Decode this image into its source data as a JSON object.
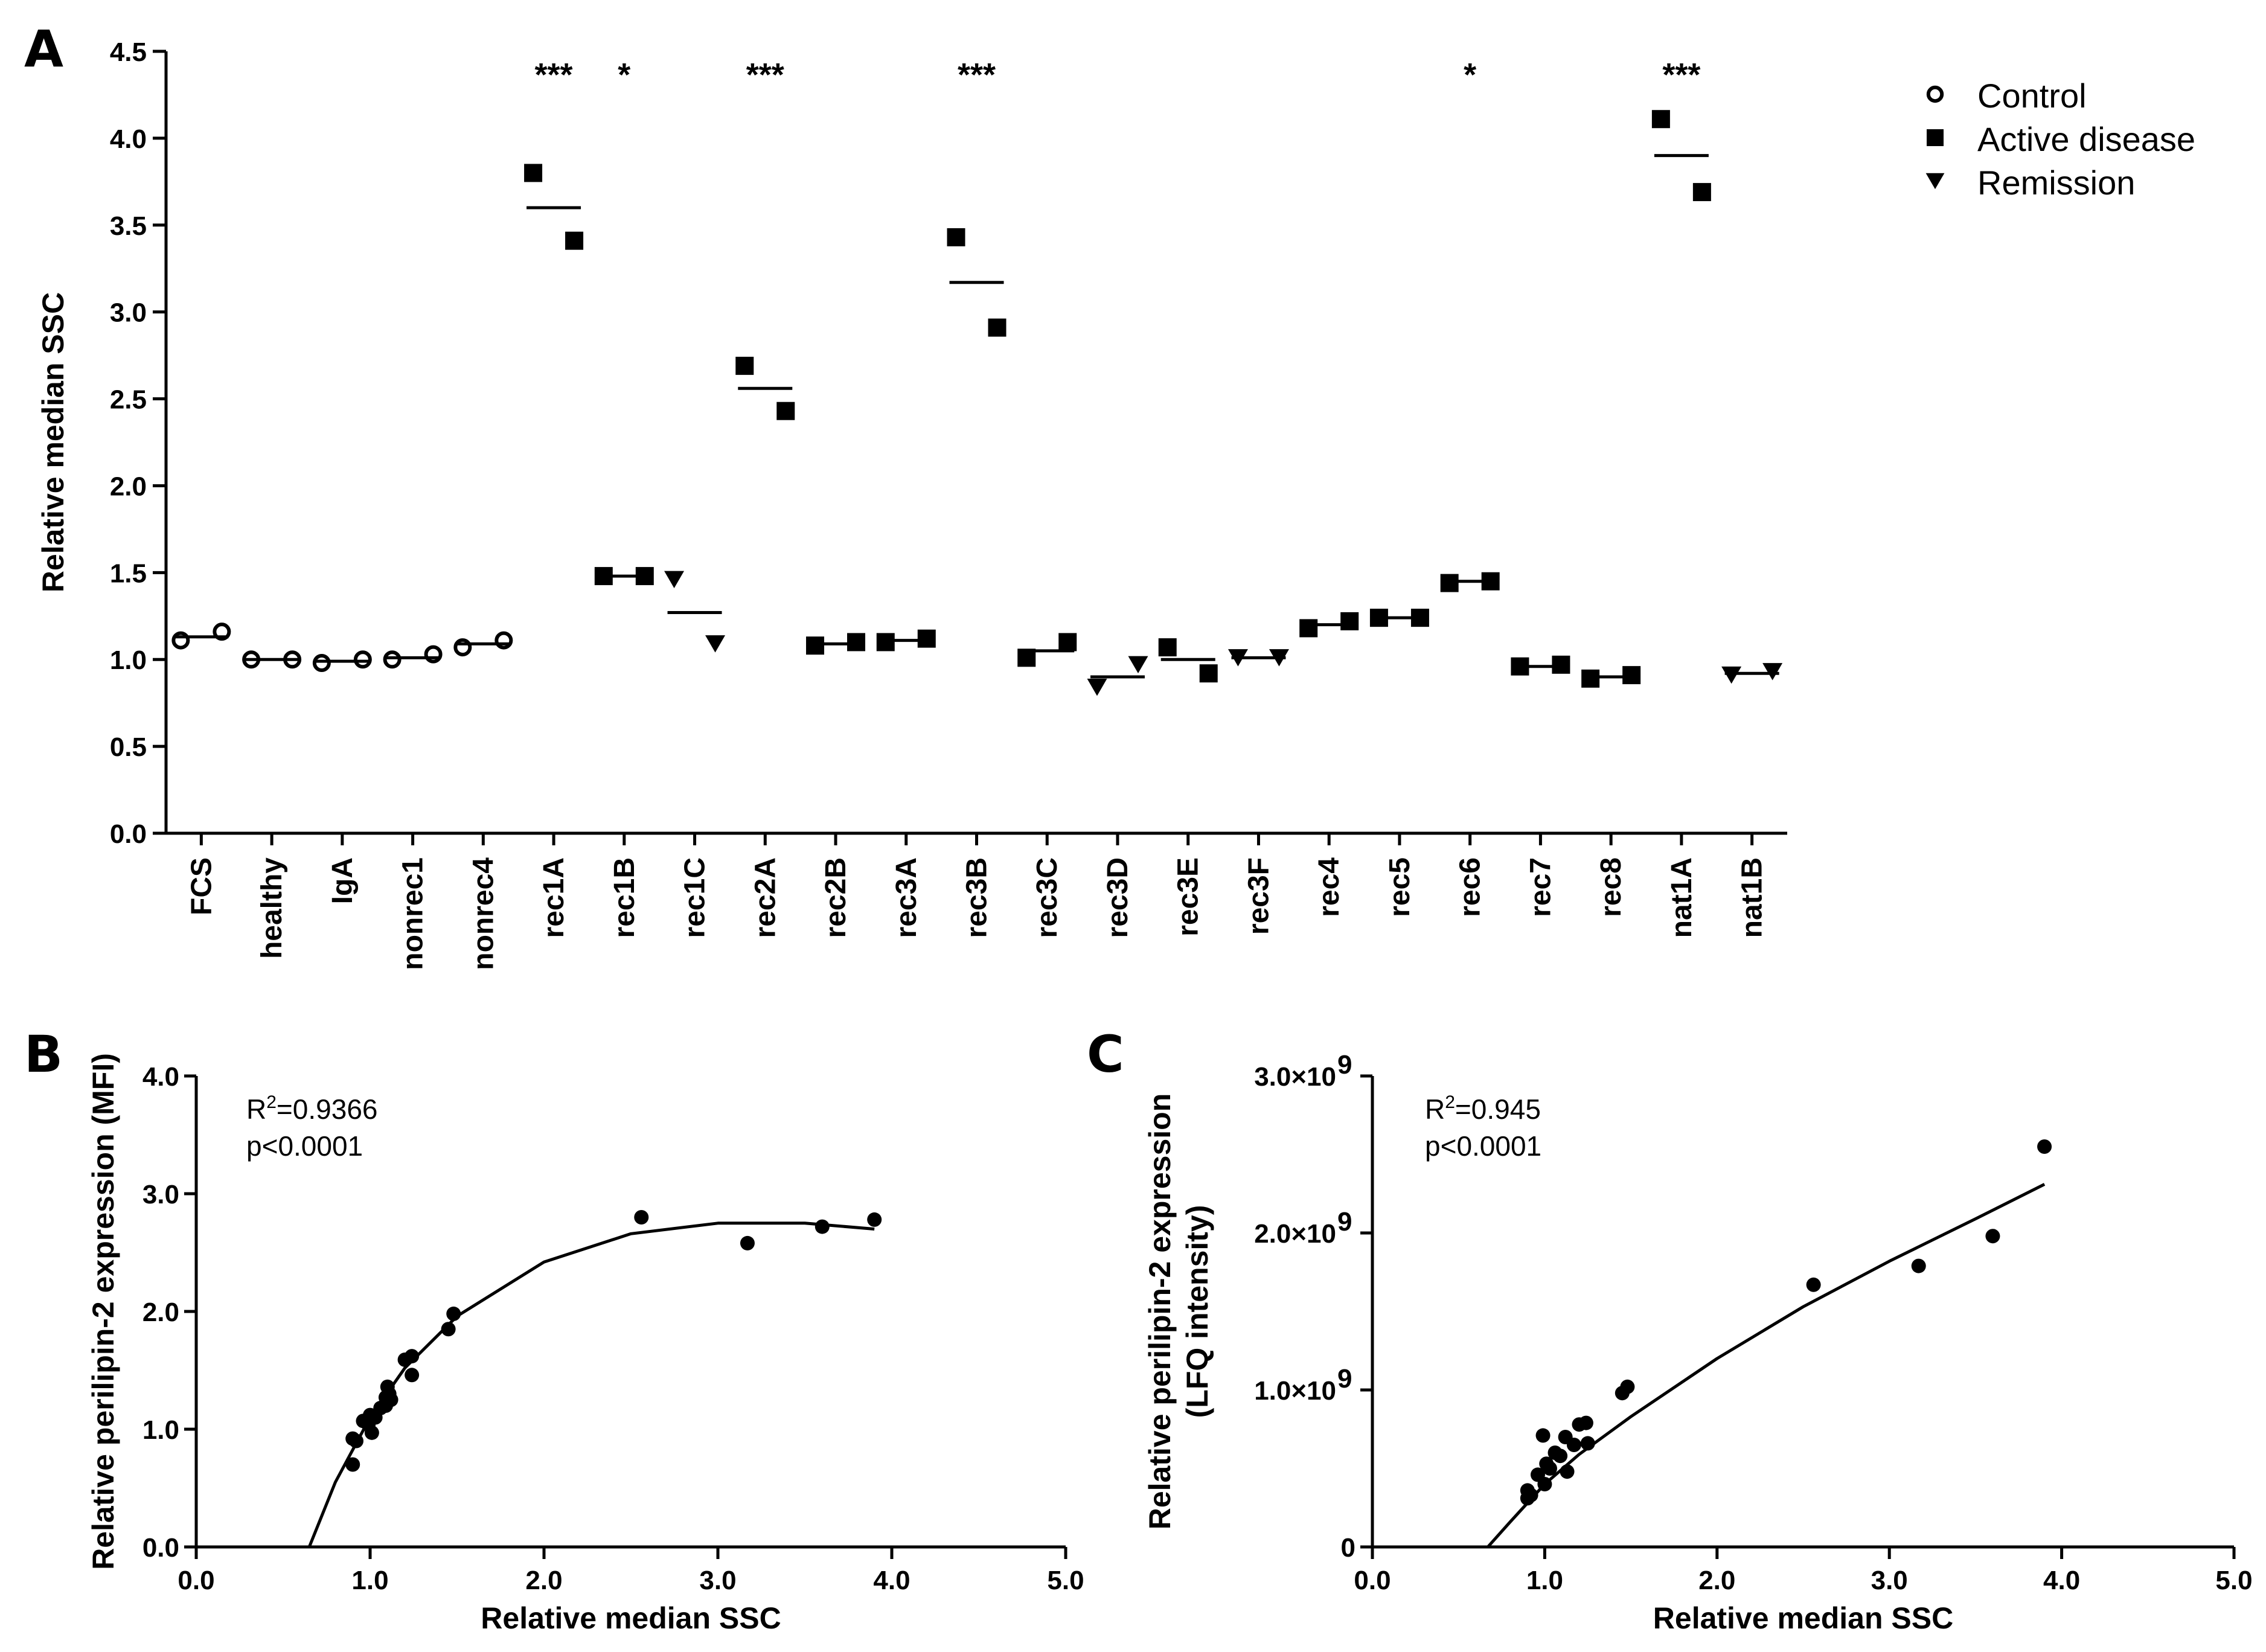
{
  "chart_data": [
    {
      "panel": "A",
      "type": "scatter",
      "ylabel": "Relative median SSC",
      "ylim": [
        0,
        4.5
      ],
      "yticks": [
        "0.0",
        "0.5",
        "1.0",
        "1.5",
        "2.0",
        "2.5",
        "3.0",
        "3.5",
        "4.0",
        "4.5"
      ],
      "legend": [
        {
          "label": "Control",
          "marker": "circle"
        },
        {
          "label": "Active disease",
          "marker": "square"
        },
        {
          "label": "Remission",
          "marker": "triangle"
        }
      ],
      "legend_position": "top-right",
      "categories": [
        {
          "label": "FCS",
          "group": "circle",
          "values": [
            1.11,
            1.16
          ],
          "mean": 1.13,
          "sig": ""
        },
        {
          "label": "healthy",
          "group": "circle",
          "values": [
            1.0,
            1.0
          ],
          "mean": 1.0,
          "sig": ""
        },
        {
          "label": "IgA",
          "group": "circle",
          "values": [
            0.98,
            1.0
          ],
          "mean": 0.99,
          "sig": ""
        },
        {
          "label": "nonrec1",
          "group": "circle",
          "values": [
            1.0,
            1.03
          ],
          "mean": 1.01,
          "sig": ""
        },
        {
          "label": "nonrec4",
          "group": "circle",
          "values": [
            1.07,
            1.11
          ],
          "mean": 1.09,
          "sig": ""
        },
        {
          "label": "rec1A",
          "group": "square",
          "values": [
            3.8,
            3.41
          ],
          "mean": 3.6,
          "sig": "***"
        },
        {
          "label": "rec1B",
          "group": "square",
          "values": [
            1.48,
            1.48
          ],
          "mean": 1.48,
          "sig": "*"
        },
        {
          "label": "rec1C",
          "group": "triangle",
          "values": [
            1.46,
            1.09
          ],
          "mean": 1.27,
          "sig": ""
        },
        {
          "label": "rec2A",
          "group": "square",
          "values": [
            2.69,
            2.43
          ],
          "mean": 2.56,
          "sig": "***"
        },
        {
          "label": "rec2B",
          "group": "square",
          "values": [
            1.08,
            1.1
          ],
          "mean": 1.09,
          "sig": ""
        },
        {
          "label": "rec3A",
          "group": "square",
          "values": [
            1.1,
            1.12
          ],
          "mean": 1.11,
          "sig": ""
        },
        {
          "label": "rec3B",
          "group": "square",
          "values": [
            3.43,
            2.91
          ],
          "mean": 3.17,
          "sig": "***"
        },
        {
          "label": "rec3C",
          "group": "square",
          "values": [
            1.01,
            1.1
          ],
          "mean": 1.05,
          "sig": ""
        },
        {
          "label": "rec3D",
          "group": "triangle",
          "values": [
            0.84,
            0.97
          ],
          "mean": 0.9,
          "sig": ""
        },
        {
          "label": "rec3E",
          "group": "square",
          "values": [
            1.07,
            0.92
          ],
          "mean": 1.0,
          "sig": ""
        },
        {
          "label": "rec3F",
          "group": "triangle",
          "values": [
            1.01,
            1.01
          ],
          "mean": 1.01,
          "sig": ""
        },
        {
          "label": "rec4",
          "group": "square",
          "values": [
            1.18,
            1.22
          ],
          "mean": 1.2,
          "sig": ""
        },
        {
          "label": "rec5",
          "group": "square",
          "values": [
            1.24,
            1.24
          ],
          "mean": 1.24,
          "sig": ""
        },
        {
          "label": "rec6",
          "group": "square",
          "values": [
            1.44,
            1.45
          ],
          "mean": 1.45,
          "sig": "*"
        },
        {
          "label": "rec7",
          "group": "square",
          "values": [
            0.96,
            0.97
          ],
          "mean": 0.96,
          "sig": ""
        },
        {
          "label": "rec8",
          "group": "square",
          "values": [
            0.89,
            0.91
          ],
          "mean": 0.9,
          "sig": ""
        },
        {
          "label": "nat1A",
          "group": "square",
          "values": [
            4.11,
            3.69
          ],
          "mean": 3.9,
          "sig": "***"
        },
        {
          "label": "nat1B",
          "group": "triangle",
          "values": [
            0.91,
            0.93
          ],
          "mean": 0.92,
          "sig": ""
        }
      ]
    },
    {
      "panel": "B",
      "type": "scatter",
      "xlabel": "Relative median SSC",
      "ylabel": "Relative perilipin-2 expression (MFI)",
      "xlim": [
        0,
        5
      ],
      "ylim": [
        0,
        4
      ],
      "xticks": [
        "0.0",
        "1.0",
        "2.0",
        "3.0",
        "4.0",
        "5.0"
      ],
      "yticks": [
        "0.0",
        "1.0",
        "2.0",
        "3.0",
        "4.0"
      ],
      "r2_base": "R",
      "r2_exp": "2",
      "r2_value": "=0.9366",
      "p_text": "p<0.0001",
      "points": [
        [
          0.9,
          0.7
        ],
        [
          0.9,
          0.92
        ],
        [
          0.92,
          0.9
        ],
        [
          0.96,
          1.07
        ],
        [
          0.99,
          1.04
        ],
        [
          1.0,
          1.12
        ],
        [
          1.01,
          0.97
        ],
        [
          1.03,
          1.1
        ],
        [
          1.06,
          1.18
        ],
        [
          1.09,
          1.2
        ],
        [
          1.09,
          1.27
        ],
        [
          1.1,
          1.36
        ],
        [
          1.11,
          1.3
        ],
        [
          1.12,
          1.25
        ],
        [
          1.2,
          1.59
        ],
        [
          1.24,
          1.46
        ],
        [
          1.24,
          1.62
        ],
        [
          1.45,
          1.85
        ],
        [
          1.48,
          1.98
        ],
        [
          2.56,
          2.8
        ],
        [
          3.17,
          2.58
        ],
        [
          3.6,
          2.72
        ],
        [
          3.9,
          2.78
        ]
      ],
      "fit": [
        [
          0.65,
          0.0
        ],
        [
          0.8,
          0.55
        ],
        [
          1.0,
          1.1
        ],
        [
          1.2,
          1.52
        ],
        [
          1.5,
          1.96
        ],
        [
          2.0,
          2.42
        ],
        [
          2.5,
          2.66
        ],
        [
          3.0,
          2.75
        ],
        [
          3.5,
          2.75
        ],
        [
          3.9,
          2.7
        ]
      ]
    },
    {
      "panel": "C",
      "type": "scatter",
      "xlabel": "Relative median SSC",
      "ylabel_line1": "Relative perilipin-2 expression",
      "ylabel_line2": "(LFQ intensity)",
      "xlim": [
        0,
        5
      ],
      "ylim": [
        0,
        3000000000.0
      ],
      "xticks": [
        "0.0",
        "1.0",
        "2.0",
        "3.0",
        "4.0",
        "5.0"
      ],
      "yticks": [
        {
          "value": 0,
          "base": "0",
          "exp": ""
        },
        {
          "value": 1000000000.0,
          "base": "1.0×10",
          "exp": "9"
        },
        {
          "value": 2000000000.0,
          "base": "2.0×10",
          "exp": "9"
        },
        {
          "value": 3000000000.0,
          "base": "3.0×10",
          "exp": "9"
        }
      ],
      "r2_base": "R",
      "r2_exp": "2",
      "r2_value": "=0.945",
      "p_text": "p<0.0001",
      "points": [
        [
          0.9,
          310000000.0
        ],
        [
          0.9,
          360000000.0
        ],
        [
          0.92,
          330000000.0
        ],
        [
          0.96,
          460000000.0
        ],
        [
          0.99,
          710000000.0
        ],
        [
          1.0,
          400000000.0
        ],
        [
          1.01,
          530000000.0
        ],
        [
          1.03,
          500000000.0
        ],
        [
          1.06,
          600000000.0
        ],
        [
          1.09,
          580000000.0
        ],
        [
          1.12,
          700000000.0
        ],
        [
          1.13,
          480000000.0
        ],
        [
          1.17,
          650000000.0
        ],
        [
          1.2,
          780000000.0
        ],
        [
          1.24,
          790000000.0
        ],
        [
          1.25,
          660000000.0
        ],
        [
          1.45,
          980000000.0
        ],
        [
          1.48,
          1020000000.0
        ],
        [
          2.56,
          1670000000.0
        ],
        [
          3.17,
          1790000000.0
        ],
        [
          3.6,
          1980000000.0
        ],
        [
          3.9,
          2550000000.0
        ]
      ],
      "fit": [
        [
          0.67,
          0
        ],
        [
          0.8,
          160000000.0
        ],
        [
          1.0,
          400000000.0
        ],
        [
          1.2,
          590000000.0
        ],
        [
          1.5,
          830000000.0
        ],
        [
          2.0,
          1200000000.0
        ],
        [
          2.5,
          1530000000.0
        ],
        [
          3.0,
          1820000000.0
        ],
        [
          3.5,
          2090000000.0
        ],
        [
          3.9,
          2310000000.0
        ]
      ]
    }
  ]
}
